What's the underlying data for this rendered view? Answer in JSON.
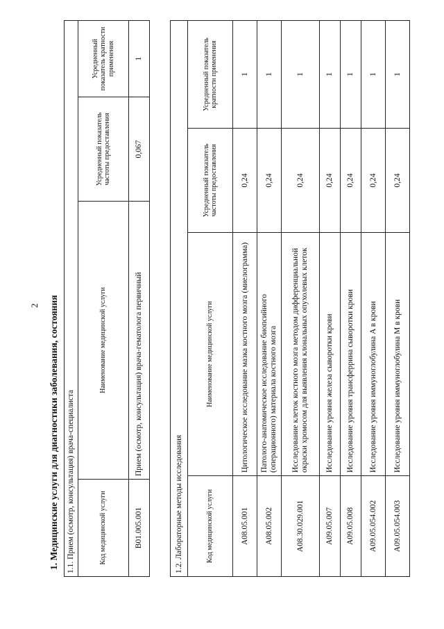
{
  "page_number": "2",
  "heading": "1. Медицинские услуги для диагностики заболевания, состояния",
  "tables": [
    {
      "section": "1.1. Прием (осмотр, консультация) врача-специалиста",
      "headers": [
        "Код медицинской услуги",
        "Наименование медицинской услуги",
        "Усредненный показатель частоты предоставления",
        "Усредненный показатель кратности применения"
      ],
      "rows": [
        [
          "B01.005.001",
          "Прием (осмотр, консультация) врача-гематолога первичный",
          "0,067",
          "1"
        ]
      ]
    },
    {
      "section": "1.2. Лабораторные методы исследования",
      "headers": [
        "Код медицинской услуги",
        "Наименование медицинской услуги",
        "Усредненный показатель частоты предоставления",
        "Усредненный показатель кратности применения"
      ],
      "rows": [
        [
          "A08.05.001",
          "Цитологическое исследование мазка костного мозга (миелограмма)",
          "0,24",
          "1"
        ],
        [
          "A08.05.002",
          "Патолого-анатомическое исследование биопсийного (операционного) материала костного мозга",
          "0,24",
          "1"
        ],
        [
          "A08.30.029.001",
          "Исследование клеток костного мозга методом дифференциальной окраски хромосом для выявления клональных опухолевых клеток",
          "0,24",
          "1"
        ],
        [
          "A09.05.007",
          "Исследование уровня железа сыворотки крови",
          "0,24",
          "1"
        ],
        [
          "A09.05.008",
          "Исследование уровня трансферрина сыворотки крови",
          "0,24",
          "1"
        ],
        [
          "A09.05.054.002",
          "Исследование уровня иммуноглобулина A в крови",
          "0,24",
          "1"
        ],
        [
          "A09.05.054.003",
          "Исследование уровня иммуноглобулина M в крови",
          "0,24",
          "1"
        ]
      ]
    }
  ]
}
